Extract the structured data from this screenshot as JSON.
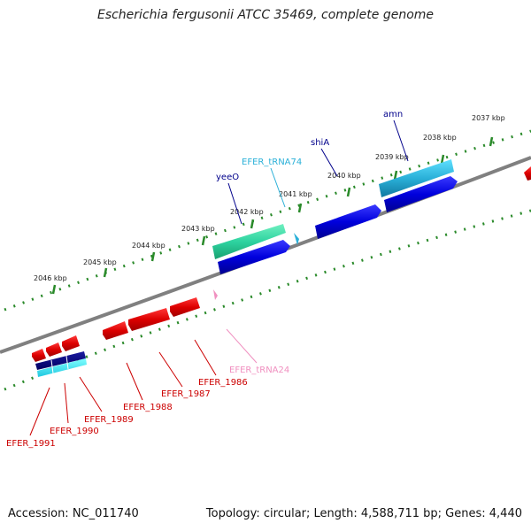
{
  "title": "Escherichia fergusonii ATCC 35469, complete genome",
  "accession": "Accession: NC_011740",
  "summary": "Topology: circular; Length: 4,588,711 bp; Genes: 4,440",
  "colors": {
    "backbone": "#808080",
    "ticks": "#2a8a2a",
    "forward_gene": "#0000dd",
    "forward_trna": "#2ab0d8",
    "forward_rrna_like": "#2ed3a0",
    "reverse_gene": "#dd0000",
    "reverse_trna": "#f090c0",
    "label_forward": "#00008b",
    "label_reverse": "#cc0000"
  },
  "scale_ticks": [
    {
      "label": "2046 kbp"
    },
    {
      "label": "2045 kbp"
    },
    {
      "label": "2044 kbp"
    },
    {
      "label": "2043 kbp"
    },
    {
      "label": "2042 kbp"
    },
    {
      "label": "2041 kbp"
    },
    {
      "label": "2040 kbp"
    },
    {
      "label": "2039 kbp"
    },
    {
      "label": "2038 kbp"
    },
    {
      "label": "2037 kbp"
    }
  ],
  "features": {
    "forward": [
      {
        "name": "yeeO",
        "type": "CDS",
        "color": "#0000dd"
      },
      {
        "name": "EFER_tRNA74",
        "type": "tRNA",
        "color": "#2ab0d8"
      },
      {
        "name": "shiA",
        "type": "CDS",
        "color": "#0000dd"
      },
      {
        "name": "amn",
        "type": "CDS",
        "color": "#0000dd"
      }
    ],
    "reverse": [
      {
        "name": "EFER_tRNA24",
        "type": "tRNA",
        "color": "#f090c0"
      },
      {
        "name": "EFER_1986",
        "type": "CDS",
        "color": "#dd0000"
      },
      {
        "name": "EFER_1987",
        "type": "CDS",
        "color": "#dd0000"
      },
      {
        "name": "EFER_1988",
        "type": "CDS",
        "color": "#dd0000"
      },
      {
        "name": "EFER_1989",
        "type": "CDS",
        "color": "#dd0000"
      },
      {
        "name": "EFER_1990",
        "type": "CDS",
        "color": "#dd0000"
      },
      {
        "name": "EFER_1991",
        "type": "CDS",
        "color": "#dd0000"
      }
    ]
  }
}
